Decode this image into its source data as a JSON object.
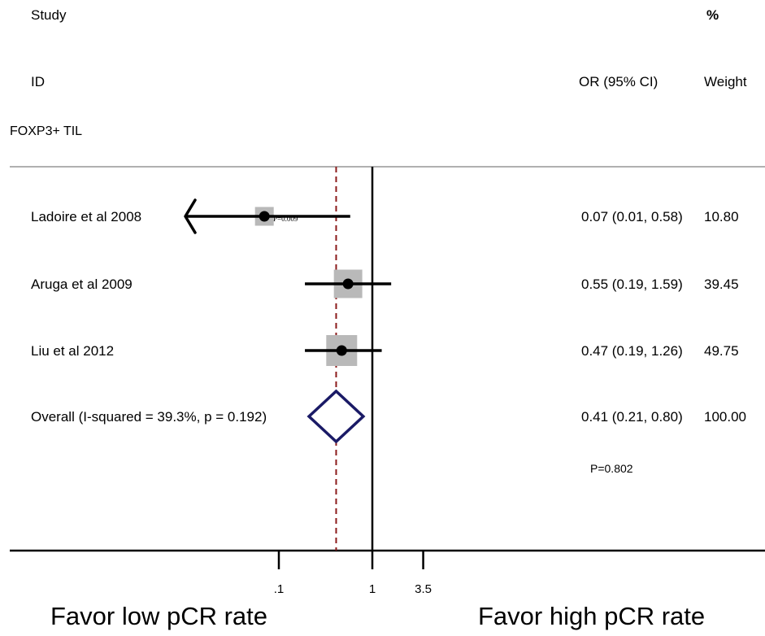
{
  "header": {
    "study": "Study",
    "id": "ID",
    "percent": "%",
    "or_ci": "OR (95% CI)",
    "weight": "Weight",
    "subgroup": "FOXP3+ TIL"
  },
  "footer": {
    "favor_low": "Favor low pCR rate",
    "favor_high": "Favor high pCR rate"
  },
  "p_value_note": "P=0.802",
  "inline_note": "P=0.009",
  "colors": {
    "box": "#b9b9b9",
    "diamond": "#1a1a66",
    "reference_dashed": "#8b1a1a",
    "rule": "#b0b0b0"
  },
  "chart_data": {
    "type": "forest",
    "x_scale": "log",
    "x_ticks": [
      {
        "value": 0.1,
        "label": ".1"
      },
      {
        "value": 1,
        "label": "1"
      },
      {
        "value": 3.5,
        "label": "3.5"
      }
    ],
    "null_line": 1,
    "overall_line": 0.41,
    "studies": [
      {
        "label": "Ladoire et al 2008",
        "or": 0.07,
        "lo": 0.01,
        "hi": 0.58,
        "weight": 10.8,
        "ci_text": "0.07 (0.01, 0.58)",
        "weight_text": "10.80",
        "arrow_left": true
      },
      {
        "label": "Aruga et al 2009",
        "or": 0.55,
        "lo": 0.19,
        "hi": 1.59,
        "weight": 39.45,
        "ci_text": "0.55 (0.19, 1.59)",
        "weight_text": "39.45"
      },
      {
        "label": "Liu et al 2012",
        "or": 0.47,
        "lo": 0.19,
        "hi": 1.26,
        "weight": 49.75,
        "ci_text": "0.47 (0.19, 1.26)",
        "weight_text": "49.75"
      }
    ],
    "overall": {
      "label": "Overall  (I-squared = 39.3%, p = 0.192)",
      "or": 0.41,
      "lo": 0.21,
      "hi": 0.8,
      "ci_text": "0.41 (0.21, 0.80)",
      "weight_text": "100.00"
    }
  }
}
